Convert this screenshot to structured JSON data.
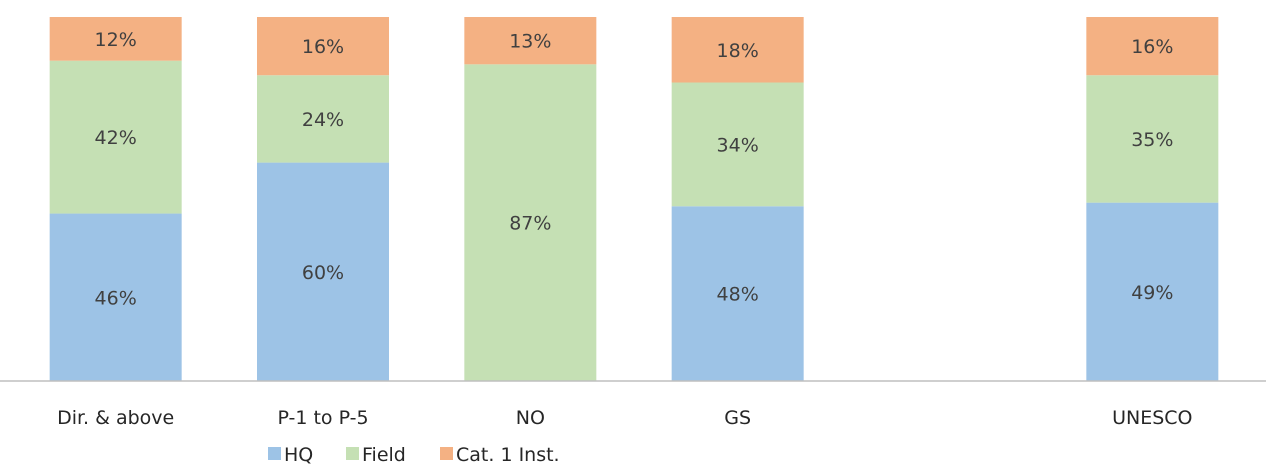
{
  "chart_data": {
    "type": "bar",
    "stacked": true,
    "percent_stacked": true,
    "categories": [
      "Dir. & above",
      "P-1 to P-5",
      "NO",
      "GS",
      "",
      "UNESCO"
    ],
    "series": [
      {
        "name": "HQ",
        "color": "#9DC3E6",
        "values": [
          46,
          60,
          0,
          48,
          null,
          49
        ],
        "labels": [
          "46%",
          "60%",
          "",
          "48%",
          "",
          "49%"
        ]
      },
      {
        "name": "Field",
        "color": "#C5E0B4",
        "values": [
          42,
          24,
          87,
          34,
          null,
          35
        ],
        "labels": [
          "42%",
          "24%",
          "87%",
          "34%",
          "",
          "35%"
        ]
      },
      {
        "name": "Cat. 1 Inst.",
        "color": "#F4B183",
        "values": [
          12,
          16,
          13,
          18,
          null,
          16
        ],
        "labels": [
          "12%",
          "16%",
          "13%",
          "18%",
          "",
          "16%"
        ]
      }
    ],
    "ylim": [
      0,
      100
    ],
    "grid": false,
    "legend": "bottom-center",
    "title": "",
    "xlabel": "",
    "ylabel": ""
  }
}
